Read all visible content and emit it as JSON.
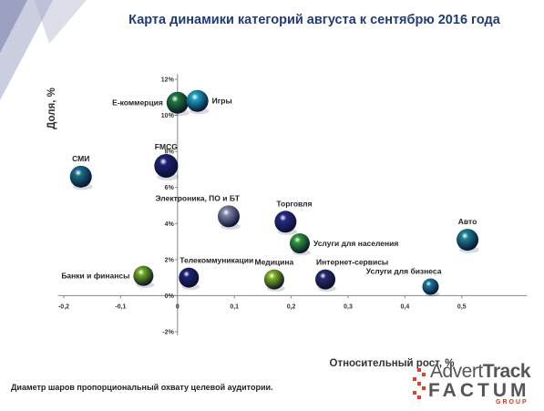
{
  "title": "Карта динамики категорий августа к сентябрю 2016 года",
  "footnote": "Диаметр шаров пропорциональный охвату целевой аудитории.",
  "logo": {
    "line1_a": "Advert",
    "line1_b": "Track",
    "line2": "FACTUM",
    "line3": "GROUP"
  },
  "colors": {
    "title": "#1f3b7a",
    "axis": "#888888",
    "accent_red": "#e04020"
  },
  "chart_data": {
    "type": "scatter",
    "xlabel": "Относительный рост, %",
    "ylabel": "Доля, %",
    "xlim": [
      -0.2,
      0.55
    ],
    "ylim": [
      -0.02,
      0.12
    ],
    "xticks": [
      -0.2,
      -0.1,
      0,
      0.1,
      0.2,
      0.3,
      0.4,
      0.5
    ],
    "xtick_labels": [
      "-0,2",
      "-0,1",
      "0",
      "0,1",
      "0,2",
      "0,3",
      "0,4",
      "0,5"
    ],
    "yticks": [
      -0.02,
      0,
      0.02,
      0.04,
      0.06,
      0.08,
      0.1,
      0.12
    ],
    "ytick_labels": [
      "-2%",
      "0%",
      "2%",
      "4%",
      "6%",
      "8%",
      "10%",
      "12%"
    ],
    "grid": false,
    "points": [
      {
        "label": "Е-коммерция",
        "x": 0.0,
        "y": 0.107,
        "size": 12,
        "color": "#1e7a3a",
        "label_pos": "left"
      },
      {
        "label": "Игры",
        "x": 0.035,
        "y": 0.108,
        "size": 12,
        "color": "#1a9fc0",
        "label_pos": "right"
      },
      {
        "label": "СМИ",
        "x": -0.17,
        "y": 0.066,
        "size": 12,
        "color": "#1a6f8a",
        "label_pos": "top"
      },
      {
        "label": "FMCG",
        "x": -0.02,
        "y": 0.072,
        "size": 13,
        "color": "#1c2375",
        "label_pos": "top"
      },
      {
        "label": "Электроника, ПО и БТ",
        "x": 0.09,
        "y": 0.044,
        "size": 12,
        "color": "#7d84a8",
        "label_pos": "top-left"
      },
      {
        "label": "Торговля",
        "x": 0.19,
        "y": 0.041,
        "size": 12,
        "color": "#262a86",
        "label_pos": "top-right"
      },
      {
        "label": "Услуги для населения",
        "x": 0.215,
        "y": 0.029,
        "size": 11,
        "color": "#2e9a3a",
        "label_pos": "right"
      },
      {
        "label": "Авто",
        "x": 0.51,
        "y": 0.031,
        "size": 12,
        "color": "#1a7f96",
        "label_pos": "top"
      },
      {
        "label": "Телекоммуникации",
        "x": 0.02,
        "y": 0.01,
        "size": 11,
        "color": "#1c2375",
        "label_pos": "top-right"
      },
      {
        "label": "Банки и финансы",
        "x": -0.06,
        "y": 0.011,
        "size": 11,
        "color": "#6fab1e",
        "label_pos": "left"
      },
      {
        "label": "Медицина",
        "x": 0.17,
        "y": 0.009,
        "size": 11,
        "color": "#7fb320",
        "label_pos": "top"
      },
      {
        "label": "Интернет-сервисы",
        "x": 0.26,
        "y": 0.009,
        "size": 11,
        "color": "#262a6e",
        "label_pos": "top-right"
      },
      {
        "label": "Услуги для бизнеса",
        "x": 0.445,
        "y": 0.005,
        "size": 9,
        "color": "#1a7aa0",
        "label_pos": "top-left"
      }
    ]
  }
}
